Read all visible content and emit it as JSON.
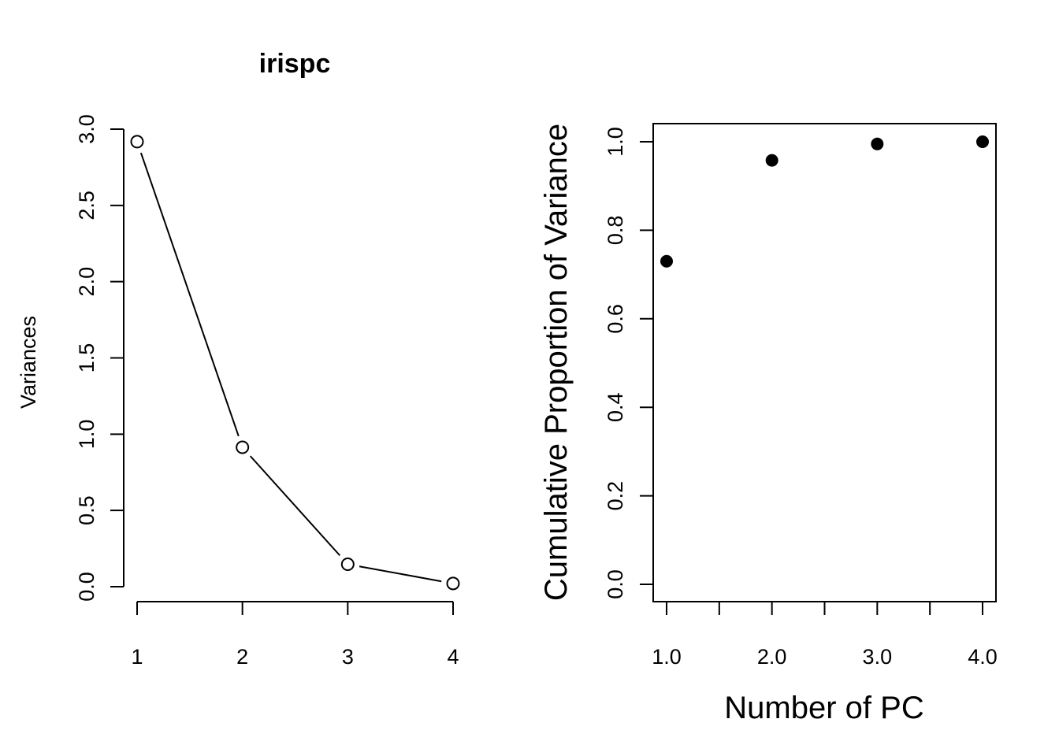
{
  "chart_data": [
    {
      "type": "line",
      "title": "irispc",
      "xlabel": "",
      "ylabel": "Variances",
      "x": [
        1,
        2,
        3,
        4
      ],
      "y": [
        2.918,
        0.914,
        0.147,
        0.021
      ],
      "xlim": [
        1,
        4
      ],
      "ylim": [
        0,
        3
      ],
      "xticks": [
        1,
        2,
        3,
        4
      ],
      "xtick_labels": [
        "1",
        "2",
        "3",
        "4"
      ],
      "yticks": [
        0,
        0.5,
        1,
        1.5,
        2,
        2.5,
        3
      ],
      "ytick_labels": [
        "0.0",
        "0.5",
        "1.0",
        "1.5",
        "2.0",
        "2.5",
        "3.0"
      ],
      "marker": "open-circle",
      "box": false,
      "grid": false
    },
    {
      "type": "scatter",
      "title": "",
      "xlabel": "Number of PC",
      "ylabel": "Cumulative Proportion of Variance",
      "x": [
        1,
        2,
        3,
        4
      ],
      "y": [
        0.73,
        0.958,
        0.995,
        1.0
      ],
      "xlim": [
        1,
        4
      ],
      "ylim": [
        0,
        1
      ],
      "xticks": [
        1,
        1.5,
        2,
        2.5,
        3,
        3.5,
        4
      ],
      "xtick_labels": [
        "1.0",
        "",
        "2.0",
        "",
        "3.0",
        "",
        "4.0"
      ],
      "yticks": [
        0,
        0.2,
        0.4,
        0.6,
        0.8,
        1.0
      ],
      "ytick_labels": [
        "0.0",
        "0.2",
        "0.4",
        "0.6",
        "0.8",
        "1.0"
      ],
      "marker": "filled-circle",
      "box": true,
      "grid": false
    }
  ]
}
